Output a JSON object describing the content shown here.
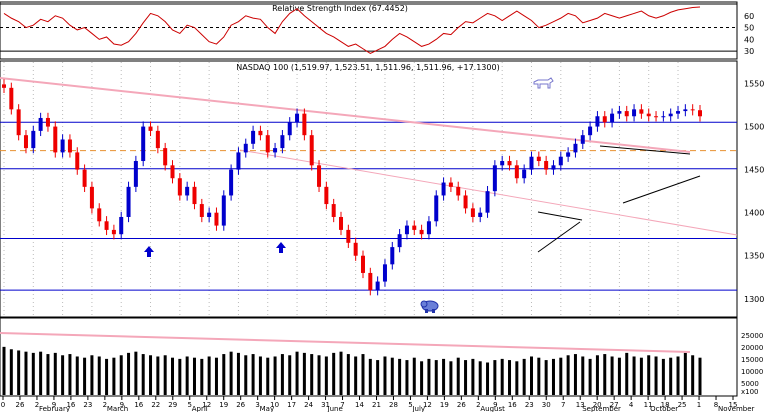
{
  "chart_data": [
    {
      "type": "line",
      "title": "Relative Strength Index (67.4452)",
      "yticks": [
        60,
        50,
        40,
        30
      ],
      "ylim": [
        25,
        70
      ],
      "reference_levels": [
        70,
        50,
        30
      ],
      "x": [
        0,
        2,
        4,
        6,
        8,
        10,
        12,
        14,
        16,
        18,
        20,
        22,
        24,
        26,
        28,
        30,
        32,
        34,
        36,
        38,
        40,
        42,
        44,
        46,
        48,
        50,
        52,
        54,
        56,
        58,
        60,
        62,
        64,
        66,
        68,
        70,
        72,
        74,
        76,
        78,
        80,
        82,
        84,
        86,
        88,
        90,
        92,
        94,
        96,
        98,
        100,
        102,
        104,
        106,
        108,
        110,
        112,
        114,
        116,
        118,
        120,
        122,
        124,
        126,
        128,
        130,
        132,
        134,
        136,
        138,
        140,
        142,
        144,
        146,
        148,
        150,
        152,
        154,
        156,
        158,
        160,
        162,
        164,
        166,
        168,
        170,
        172,
        174,
        176,
        178,
        180,
        182,
        184,
        186,
        188,
        190
      ],
      "values": [
        62,
        58,
        55,
        50,
        52,
        57,
        55,
        60,
        58,
        52,
        48,
        50,
        45,
        40,
        42,
        36,
        35,
        38,
        45,
        54,
        62,
        60,
        55,
        48,
        45,
        52,
        50,
        44,
        38,
        36,
        42,
        52,
        55,
        60,
        58,
        57,
        50,
        45,
        55,
        62,
        66,
        60,
        55,
        50,
        45,
        42,
        38,
        34,
        36,
        32,
        28,
        31,
        34,
        40,
        45,
        42,
        38,
        34,
        36,
        40,
        45,
        44,
        50,
        55,
        54,
        58,
        62,
        60,
        56,
        60,
        64,
        60,
        56,
        50,
        52,
        55,
        58,
        62,
        60,
        54,
        56,
        58,
        62,
        60,
        58,
        60,
        62,
        64,
        60,
        58,
        60,
        63,
        65,
        66,
        67,
        67.4452
      ],
      "color": "#cc0000"
    },
    {
      "type": "candlestick",
      "title": "NASDAQ 100 (1,519.97, 1,523.51, 1,511.96, 1,511.96, +17.1300)",
      "yticks": [
        1550,
        1500,
        1450,
        1400,
        1350,
        1300
      ],
      "ylim": [
        1280,
        1575
      ],
      "horizontal_levels": [
        1505,
        1472,
        1451,
        1370,
        1310
      ],
      "bullish_color": "#0000cc",
      "bearish_color": "#ee0000",
      "x": [
        0,
        2,
        4,
        6,
        8,
        10,
        12,
        14,
        16,
        18,
        20,
        22,
        24,
        26,
        28,
        30,
        32,
        34,
        36,
        38,
        40,
        42,
        44,
        46,
        48,
        50,
        52,
        54,
        56,
        58,
        60,
        62,
        64,
        66,
        68,
        70,
        72,
        74,
        76,
        78,
        80,
        82,
        84,
        86,
        88,
        90,
        92,
        94,
        96,
        98,
        100,
        102,
        104,
        106,
        108,
        110,
        112,
        114,
        116,
        118,
        120,
        122,
        124,
        126,
        128,
        130,
        132,
        134,
        136,
        138,
        140,
        142,
        144,
        146,
        148,
        150,
        152,
        154,
        156,
        158,
        160,
        162,
        164,
        166,
        168,
        170,
        172,
        174,
        176,
        178,
        180,
        182,
        184,
        186,
        188,
        190
      ],
      "close": [
        1545,
        1520,
        1490,
        1475,
        1495,
        1510,
        1500,
        1470,
        1485,
        1470,
        1450,
        1430,
        1405,
        1390,
        1380,
        1375,
        1395,
        1430,
        1460,
        1500,
        1495,
        1475,
        1455,
        1440,
        1420,
        1430,
        1410,
        1395,
        1400,
        1385,
        1420,
        1450,
        1470,
        1480,
        1495,
        1490,
        1470,
        1475,
        1490,
        1505,
        1515,
        1490,
        1455,
        1430,
        1410,
        1395,
        1380,
        1365,
        1350,
        1330,
        1310,
        1320,
        1340,
        1360,
        1375,
        1385,
        1380,
        1375,
        1390,
        1420,
        1435,
        1430,
        1420,
        1405,
        1395,
        1400,
        1425,
        1455,
        1460,
        1455,
        1440,
        1450,
        1465,
        1460,
        1450,
        1455,
        1465,
        1470,
        1480,
        1490,
        1500,
        1512,
        1505,
        1515,
        1518,
        1512,
        1520,
        1515,
        1512,
        1511.96,
        1512,
        1515,
        1518,
        1520,
        1519,
        1511.96
      ],
      "volume": [
        20000,
        19000,
        18500,
        18000,
        17500,
        18000,
        17000,
        17500,
        16500,
        17000,
        16000,
        15500,
        16500,
        16000,
        15000,
        15500,
        16500,
        17500,
        18000,
        17000,
        16500,
        16000,
        16500,
        15500,
        15000,
        16000,
        15500,
        15000,
        16000,
        15500,
        17000,
        18000,
        17500,
        16500,
        17000,
        16000,
        15500,
        16000,
        17000,
        16500,
        18000,
        17500,
        17000,
        16500,
        16000,
        17500,
        18000,
        17000,
        16000,
        17000,
        15000,
        14500,
        16000,
        15500,
        15000,
        14500,
        15500,
        14000,
        15000,
        14500,
        15000,
        14000,
        15500,
        14500,
        15000,
        14000,
        13500,
        14500,
        15000,
        14500,
        14000,
        15000,
        16000,
        15500,
        14500,
        15000,
        15500,
        16500,
        17000,
        16000,
        15000,
        16500,
        17000,
        16000,
        15500,
        17500,
        16000,
        15500,
        16500,
        16000,
        15000,
        15500,
        16000,
        17500,
        16500,
        15500
      ]
    }
  ],
  "volume_ticks": [
    "25000",
    "20000",
    "15000",
    "10000",
    "5000",
    "x100"
  ],
  "date_ticks": [
    "0",
    "26",
    "2",
    "9",
    "16",
    "23",
    "2",
    "9",
    "16",
    "22",
    "29",
    "5",
    "12",
    "19",
    "26",
    "3",
    "10",
    "17",
    "24",
    "31",
    "7",
    "14",
    "21",
    "28",
    "5",
    "12",
    "19",
    "26",
    "2",
    "9",
    "16",
    "23",
    "30",
    "7",
    "13",
    "20",
    "27",
    "4",
    "11",
    "18",
    "25",
    "1",
    "8",
    "15"
  ],
  "month_labels": [
    "February",
    "March",
    "April",
    "May",
    "June",
    "July",
    "August",
    "September",
    "October",
    "November"
  ],
  "marker_colors": {
    "arrow": "#0000cc",
    "trend_pink": "#f4a7b9",
    "dashed_orange": "#e89030"
  },
  "icons": [
    "up-arrow-icon",
    "bull-icon",
    "bear-icon"
  ]
}
